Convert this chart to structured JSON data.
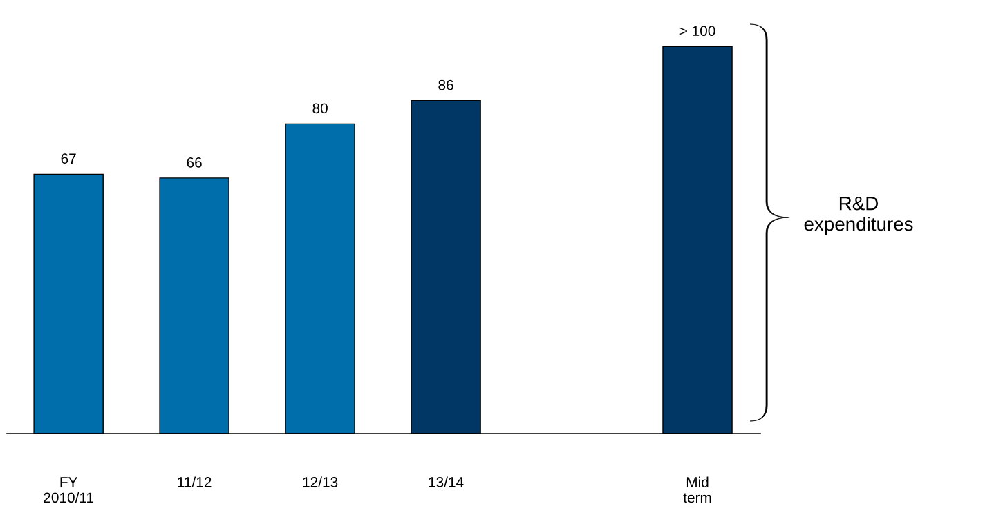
{
  "chart_data": {
    "type": "bar",
    "categories": [
      "FY\n2010/11",
      "11/12",
      "12/13",
      "13/14",
      null,
      "Mid\nterm"
    ],
    "values": [
      67,
      66,
      80,
      86,
      null,
      100
    ],
    "colors": [
      "#006eab",
      "#006eab",
      "#006eab",
      "#003764",
      null,
      "#003764"
    ],
    "value_labels": [
      "67",
      "66",
      "80",
      "86",
      null,
      "> 100"
    ],
    "annotations": [
      "R&D\nexpenditures"
    ]
  }
}
